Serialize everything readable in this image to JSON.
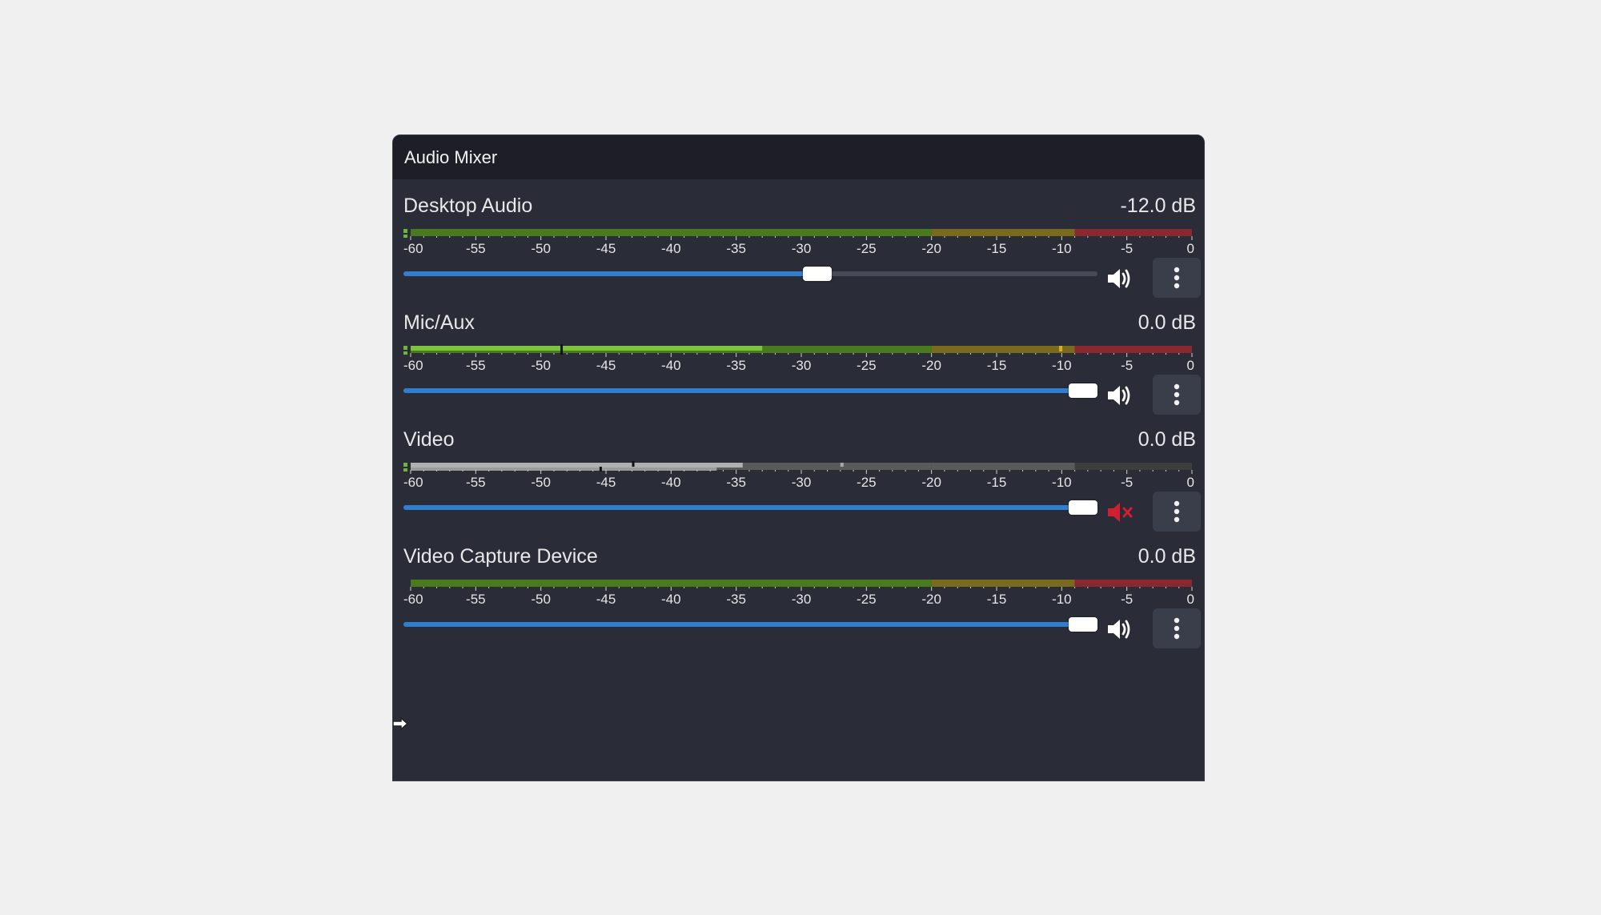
{
  "panel": {
    "title": "Audio Mixer"
  },
  "scale_labels": [
    "-60",
    "-55",
    "-50",
    "-45",
    "-40",
    "-35",
    "-30",
    "-25",
    "-20",
    "-15",
    "-10",
    "-5",
    "0"
  ],
  "colors": {
    "fader_fill": "#2f7fd1",
    "muted_icon": "#d01f2f",
    "meter_green": "#4a7a1e",
    "meter_green_active": "#7cc43c",
    "meter_yellow": "#7a6a1e",
    "meter_red": "#8a2830",
    "meter_grey": "#5a5a5a",
    "meter_grey_active": "#b0b0b0"
  },
  "channels": [
    {
      "name": "Desktop Audio",
      "db": "-12.0 dB",
      "fader_fraction": 0.6,
      "muted": false,
      "volume_icon": "speaker-volume-icon",
      "menu_icon": "kebab-menu-icon"
    },
    {
      "name": "Mic/Aux",
      "db": "0.0 dB",
      "fader_fraction": 1.0,
      "muted": false,
      "volume_icon": "speaker-volume-icon",
      "menu_icon": "kebab-menu-icon"
    },
    {
      "name": "Video",
      "db": "0.0 dB",
      "fader_fraction": 1.0,
      "muted": true,
      "volume_icon": "speaker-muted-icon",
      "menu_icon": "kebab-menu-icon"
    },
    {
      "name": "Video Capture Device",
      "db": "0.0 dB",
      "fader_fraction": 1.0,
      "muted": false,
      "volume_icon": "speaker-volume-icon",
      "menu_icon": "kebab-menu-icon"
    }
  ]
}
